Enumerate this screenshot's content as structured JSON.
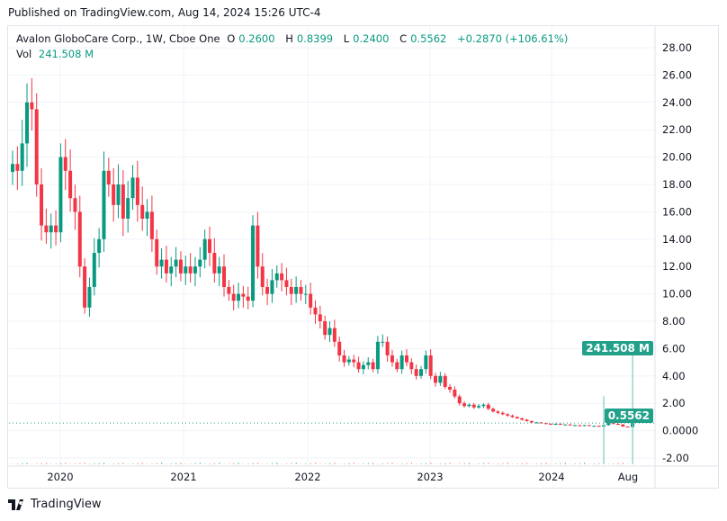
{
  "published": "Published on TradingView.com, Aug 14, 2024 15:26 UTC-4",
  "legend": {
    "symbol": "Avalon GloboCare Corp., 1W, Cboe One",
    "o_label": "O",
    "o": "0.2600",
    "h_label": "H",
    "h": "0.8399",
    "l_label": "L",
    "l": "0.2400",
    "c_label": "C",
    "c": "0.5562",
    "change": "+0.2870 (+106.61%)",
    "vol_label": "Vol",
    "vol": "241.508 M"
  },
  "badges": {
    "volume": "241.508 M",
    "price": "0.5562"
  },
  "logo": {
    "text": "TradingView",
    "icon": "tradingview-logo-icon"
  },
  "chart_data": {
    "type": "candlestick",
    "interval": "1W (approximate, sampled)",
    "yaxis": {
      "range": [
        -2,
        28
      ],
      "ticks": [
        "28.00",
        "26.00",
        "24.00",
        "22.00",
        "20.00",
        "18.00",
        "16.00",
        "14.00",
        "12.00",
        "10.00",
        "8.00",
        "6.00",
        "4.00",
        "2.00",
        "0.0000",
        "-2.00"
      ]
    },
    "xaxis": {
      "ticks": [
        "2020",
        "2021",
        "2022",
        "2023",
        "2024",
        "Aug"
      ]
    },
    "grid": true,
    "colors": {
      "up": "#089981",
      "down": "#f23645",
      "volume_up": "#7fcbbd",
      "volume_down": "#f8a5ad"
    },
    "last_price": 0.5562,
    "closes": [
      19.5,
      19,
      21,
      24,
      23.5,
      18,
      15,
      14.5,
      15,
      14.5,
      20,
      19,
      17,
      16,
      12,
      9,
      10.5,
      13,
      14,
      19,
      18,
      16.5,
      18,
      15.5,
      17,
      18.5,
      16.5,
      15.5,
      16,
      14,
      12,
      12.5,
      11.5,
      12,
      12.5,
      11.5,
      12,
      11.5,
      12,
      12.5,
      14,
      13,
      11.5,
      12,
      10.5,
      10,
      9.5,
      10,
      9.8,
      9.5,
      15,
      12,
      10.5,
      10,
      11,
      11.5,
      11,
      10.5,
      10,
      10.5,
      10,
      10,
      9,
      8.5,
      8,
      7,
      7.5,
      6.5,
      5.5,
      5,
      5.2,
      5,
      4.5,
      4.8,
      5,
      4.5,
      6.5,
      6.5,
      5.5,
      5,
      4.5,
      5.5,
      5,
      4.5,
      4,
      4.5,
      5.5,
      4,
      3.5,
      4,
      3.2,
      3,
      2.5,
      2,
      1.8,
      1.9,
      1.7,
      1.8,
      1.9,
      1.6,
      1.4,
      1.3,
      1.2,
      1.1,
      1.0,
      0.9,
      0.8,
      0.7,
      0.6,
      0.6,
      0.55,
      0.5,
      0.45,
      0.5,
      0.45,
      0.45,
      0.4,
      0.4,
      0.35,
      0.4,
      0.35,
      0.35,
      0.3,
      0.4,
      0.55,
      0.5,
      0.45,
      0.3,
      0.26,
      0.5562
    ],
    "volume_millions_spikes": {
      "2024-05": 150,
      "2024-08": 241.508
    }
  }
}
